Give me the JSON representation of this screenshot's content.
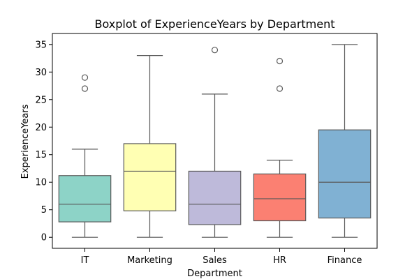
{
  "chart_data": {
    "type": "boxplot",
    "title": "Boxplot of ExperienceYears by Department",
    "xlabel": "Department",
    "ylabel": "ExperienceYears",
    "ylim": [
      -2,
      37
    ],
    "yticks": [
      0,
      5,
      10,
      15,
      20,
      25,
      30,
      35
    ],
    "grid": false,
    "legend": "none",
    "categories": [
      "IT",
      "Marketing",
      "Sales",
      "HR",
      "Finance"
    ],
    "boxes": [
      {
        "category": "IT",
        "color": "#8dd3c7",
        "whisker_low": 0,
        "q1": 2.8,
        "median": 6,
        "q3": 11.2,
        "whisker_high": 16,
        "outliers": [
          27,
          29
        ]
      },
      {
        "category": "Marketing",
        "color": "#ffffb3",
        "whisker_low": 0,
        "q1": 4.8,
        "median": 12,
        "q3": 17,
        "whisker_high": 33,
        "outliers": []
      },
      {
        "category": "Sales",
        "color": "#bebada",
        "whisker_low": 0,
        "q1": 2.3,
        "median": 6,
        "q3": 12,
        "whisker_high": 26,
        "outliers": [
          34
        ]
      },
      {
        "category": "HR",
        "color": "#fb8072",
        "whisker_low": 0,
        "q1": 3,
        "median": 7,
        "q3": 11.5,
        "whisker_high": 14,
        "outliers": [
          27,
          32
        ]
      },
      {
        "category": "Finance",
        "color": "#80b1d3",
        "whisker_low": 0,
        "q1": 3.5,
        "median": 10,
        "q3": 19.5,
        "whisker_high": 35,
        "outliers": []
      }
    ]
  }
}
